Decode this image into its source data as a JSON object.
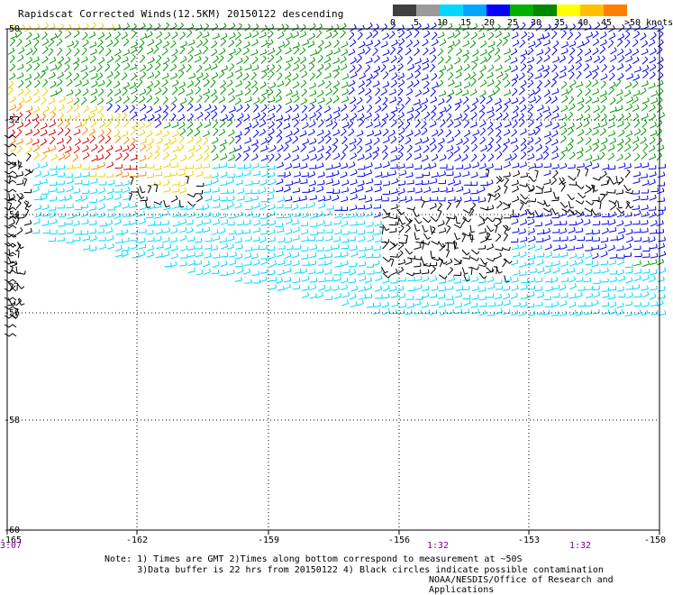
{
  "title": "Rapidscat Corrected Winds(12.5KM) 20150122 descending",
  "legend": {
    "colors": [
      "#404040",
      "#9a9a9a",
      "#00d8ff",
      "#00a6ff",
      "#0000ff",
      "#00b000",
      "#008800",
      "#ffff00",
      "#ffc000",
      "#ff8000",
      "#ff4000",
      "#ff0000",
      "#b00000",
      "#8b4513",
      "#5a2a00",
      "#ff00ff",
      "#b000b0",
      "#6000c0",
      "#5000a0",
      "#400080"
    ],
    "labels": [
      "0",
      "5",
      "10",
      "15",
      "20",
      "25",
      "30",
      "35",
      "40",
      "45",
      ">50 knots"
    ]
  },
  "axes": {
    "lat_labels": [
      "-50",
      "-52",
      "-54",
      "-56",
      "-58",
      "-60"
    ],
    "lon_labels": [
      "-165",
      "-162",
      "-159",
      "-156",
      "-153",
      "-150"
    ],
    "time_labels": [
      "3:07",
      "1:32",
      "1:32"
    ]
  },
  "wind_colors": {
    "black": "#000000",
    "cyan": "#00d8ff",
    "blue": "#0000ee",
    "green": "#009a00",
    "yellow": "#f0d000",
    "orange": "#ff8000",
    "red": "#d00000"
  },
  "note": {
    "line1": "Note: 1) Times are GMT 2)Times along bottom correspond to measurement at ~50S",
    "line2": "      3)Data buffer is 22 hrs from 20150122 4) Black circles indicate possible contamination"
  },
  "credit": "NOAA/NESDIS/Office of Research and Applications"
}
